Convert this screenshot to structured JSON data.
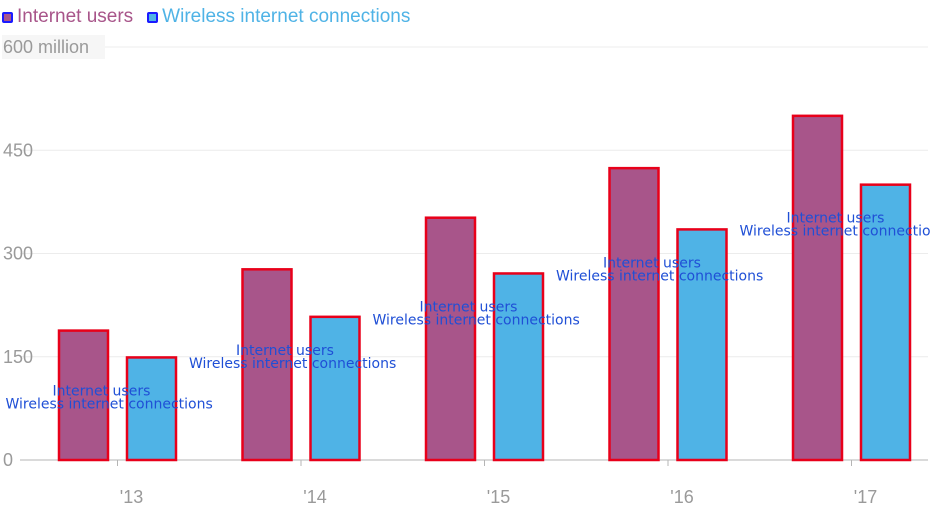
{
  "chart_data": {
    "type": "bar",
    "categories": [
      "'13",
      "'14",
      "'15",
      "'16",
      "'17"
    ],
    "series": [
      {
        "name": "Internet users",
        "color": "#a8558a",
        "values": [
          188,
          277,
          352,
          424,
          500
        ]
      },
      {
        "name": "Wireless internet connections",
        "color": "#4fb3e6",
        "values": [
          149,
          208,
          271,
          335,
          400
        ]
      }
    ],
    "y_ticks": [
      {
        "value": 0,
        "label": "0"
      },
      {
        "value": 150,
        "label": "150"
      },
      {
        "value": 300,
        "label": "300"
      },
      {
        "value": 450,
        "label": "450"
      },
      {
        "value": 600,
        "label": "600 million"
      }
    ],
    "ylim": [
      0,
      600
    ],
    "grid": true,
    "legend_position": "top-left",
    "bar_outline_color": "#e8001a",
    "annotation_color": "#1f4fd6"
  }
}
